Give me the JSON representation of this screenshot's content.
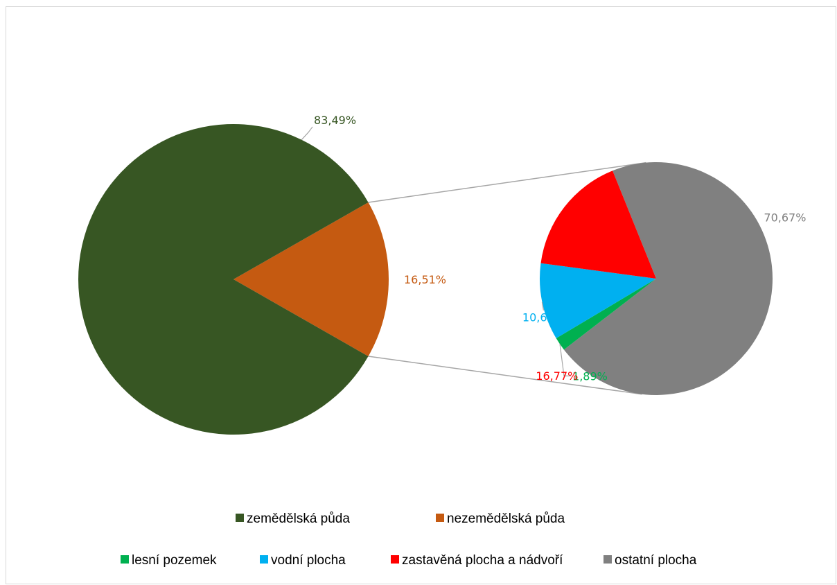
{
  "chart_data": {
    "type": "pie",
    "variant": "pie-of-pie",
    "primary": {
      "slices": [
        {
          "label": "zemědělská půda",
          "value": 83.49,
          "display": "83,49%",
          "color": "#375623"
        },
        {
          "label": "nezemědělská půda",
          "value": 16.51,
          "display": "16,51%",
          "color": "#c55a11"
        }
      ]
    },
    "secondary": {
      "breakdown_of": "nezemědělská půda",
      "slices": [
        {
          "label": "ostatní plocha",
          "value": 70.67,
          "display": "70,67%",
          "color": "#808080"
        },
        {
          "label": "lesní pozemek",
          "value": 1.89,
          "display": "1,89%",
          "color": "#00b050"
        },
        {
          "label": "vodní plocha",
          "value": 10.67,
          "display": "10,67%",
          "color": "#00b0f0"
        },
        {
          "label": "zastavěná plocha a nádvoří",
          "value": 16.77,
          "display": "16,77%",
          "color": "#ff0000"
        }
      ]
    },
    "legend": {
      "placement": "bottom",
      "rows": [
        [
          "zemědělská půda",
          "nezemědělská půda"
        ],
        [
          "lesní pozemek",
          "vodní plocha",
          "zastavěná plocha a nádvoří",
          "ostatní plocha"
        ]
      ]
    }
  }
}
